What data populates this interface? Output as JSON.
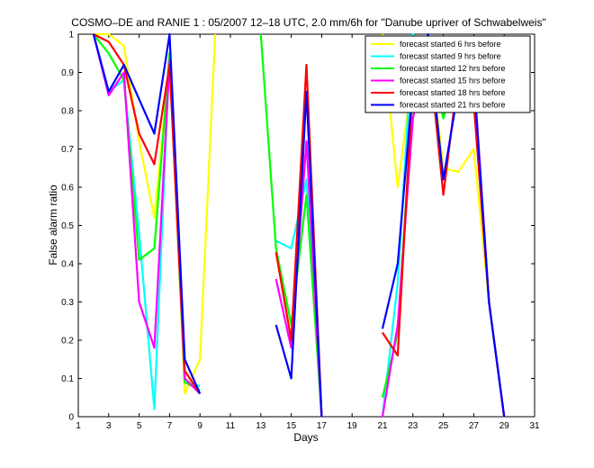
{
  "chart_data": {
    "type": "line",
    "title": "COSMO–DE and RANIE 1 : 05/2007 12–18 UTC, 2.0 mm/6h for \"Danube upriver of Schwabelweis\"",
    "xlabel": "Days",
    "ylabel": "False alarm ratio",
    "xlim": [
      1,
      31
    ],
    "ylim": [
      0,
      1
    ],
    "x_ticks": [
      1,
      3,
      5,
      7,
      9,
      11,
      13,
      15,
      17,
      19,
      21,
      23,
      25,
      27,
      29,
      31
    ],
    "y_ticks": [
      0,
      0.1,
      0.2,
      0.3,
      0.4,
      0.5,
      0.6,
      0.7,
      0.8,
      0.9,
      1
    ],
    "grid": false,
    "legend_position": "top-right",
    "series": [
      {
        "name": "forecast started 6 hrs before",
        "color": "#ffff00",
        "x": [
          2,
          3,
          4,
          5,
          6,
          7,
          8,
          9,
          10,
          null,
          21,
          22,
          23,
          24,
          25,
          26,
          27,
          28,
          29
        ],
        "y": [
          1.0,
          1.0,
          0.97,
          0.72,
          0.52,
          0.93,
          0.06,
          0.15,
          1.0,
          null,
          1.0,
          0.6,
          0.9,
          1.0,
          0.65,
          0.64,
          0.7,
          0.3,
          0.0
        ]
      },
      {
        "name": "forecast started 9 hrs before",
        "color": "#00ffff",
        "x": [
          2,
          3,
          4,
          5,
          6,
          7,
          8,
          9,
          null,
          14,
          15,
          16,
          17,
          null,
          21,
          22,
          23,
          24,
          25,
          26,
          27,
          28,
          29
        ],
        "y": [
          1.0,
          0.85,
          0.88,
          0.48,
          0.02,
          0.95,
          0.09,
          0.08,
          null,
          0.46,
          0.44,
          0.62,
          0.0,
          null,
          0.0,
          0.35,
          1.0,
          0.95,
          0.78,
          0.93,
          0.86,
          0.3,
          0.0
        ]
      },
      {
        "name": "forecast started 12 hrs before",
        "color": "#00ff00",
        "x": [
          2,
          3,
          4,
          5,
          6,
          7,
          8,
          9,
          null,
          13,
          14,
          15,
          16,
          17,
          null,
          21,
          22,
          23,
          24,
          25,
          26,
          27,
          28,
          29
        ],
        "y": [
          1.0,
          0.95,
          0.88,
          0.41,
          0.44,
          0.95,
          0.09,
          0.07,
          null,
          1.0,
          0.44,
          0.24,
          0.58,
          0.0,
          null,
          0.05,
          0.22,
          0.85,
          1.0,
          0.78,
          0.95,
          0.88,
          0.3,
          0.0
        ]
      },
      {
        "name": "forecast started 15 hrs before",
        "color": "#ff00ff",
        "x": [
          2,
          3,
          4,
          5,
          6,
          7,
          8,
          9,
          null,
          14,
          15,
          16,
          17,
          null,
          21,
          22,
          23,
          24,
          25,
          26,
          27,
          28,
          29
        ],
        "y": [
          1.0,
          0.84,
          0.9,
          0.3,
          0.18,
          0.93,
          0.1,
          0.06,
          null,
          0.36,
          0.18,
          0.72,
          0.0,
          null,
          0.0,
          0.24,
          0.78,
          0.97,
          0.85,
          0.98,
          0.9,
          0.3,
          0.0
        ]
      },
      {
        "name": "forecast started 18 hrs before",
        "color": "#ff0000",
        "x": [
          2,
          3,
          4,
          5,
          6,
          7,
          8,
          9,
          null,
          14,
          15,
          16,
          17,
          null,
          21,
          22,
          23,
          24,
          25,
          26,
          27,
          28,
          29
        ],
        "y": [
          1.0,
          0.98,
          0.92,
          0.74,
          0.66,
          0.92,
          0.12,
          0.06,
          null,
          0.43,
          0.2,
          0.92,
          0.0,
          null,
          0.22,
          0.16,
          0.88,
          0.98,
          0.58,
          0.9,
          0.82,
          0.3,
          0.0
        ]
      },
      {
        "name": "forecast started 21 hrs before",
        "color": "#0000ff",
        "x": [
          2,
          3,
          4,
          5,
          6,
          7,
          8,
          9,
          null,
          14,
          15,
          16,
          17,
          null,
          21,
          22,
          23,
          24,
          25,
          26,
          27,
          28,
          29
        ],
        "y": [
          1.0,
          0.85,
          0.92,
          0.83,
          0.74,
          1.0,
          0.15,
          0.06,
          null,
          0.24,
          0.1,
          0.85,
          0.0,
          null,
          0.23,
          0.4,
          0.87,
          1.0,
          0.62,
          0.86,
          0.89,
          0.3,
          0.0
        ]
      }
    ]
  }
}
